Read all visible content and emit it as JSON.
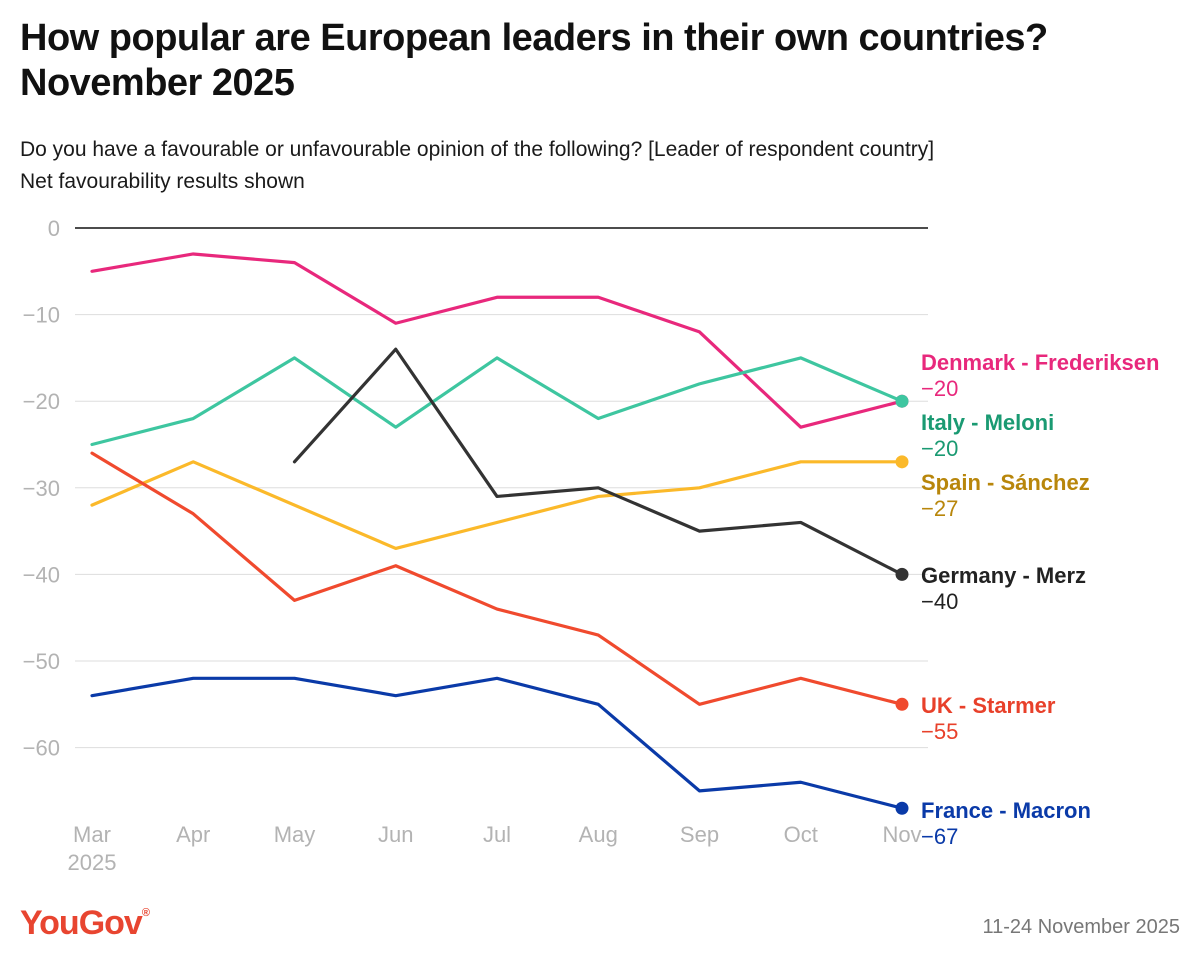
{
  "title": "How popular are European leaders in their own countries? November 2025",
  "subtitle_line1": "Do you have a favourable or unfavourable opinion of the following? [Leader of respondent country]",
  "subtitle_line2": "Net favourability results shown",
  "footer": {
    "logo": "YouGov",
    "date": "11-24 November 2025"
  },
  "chart_data": {
    "type": "line",
    "title": "How popular are European leaders in their own countries? November 2025",
    "xlabel": "",
    "ylabel": "",
    "categories": [
      "Mar",
      "Apr",
      "May",
      "Jun",
      "Jul",
      "Aug",
      "Sep",
      "Oct",
      "Nov"
    ],
    "category_sublabels": [
      "2025",
      "",
      "",
      "",
      "",
      "",
      "",
      "",
      ""
    ],
    "ylim": [
      -70,
      0
    ],
    "yticks": [
      0,
      -10,
      -20,
      -30,
      -40,
      -50,
      -60
    ],
    "ytick_labels": [
      "0",
      "−10",
      "−20",
      "−30",
      "−40",
      "−50",
      "−60"
    ],
    "grid": true,
    "legend": "right (direct labels)",
    "series": [
      {
        "name": "Denmark - Frederiksen",
        "label_value": "−20",
        "color": "#e8287c",
        "label_color": "#e8287c",
        "values": [
          -5,
          -3,
          -4,
          -11,
          -8,
          -8,
          -12,
          -23,
          -20
        ]
      },
      {
        "name": "Italy - Meloni",
        "label_value": "−20",
        "color": "#3ec6a0",
        "label_color": "#1a9a72",
        "values": [
          -25,
          -22,
          -15,
          -23,
          -15,
          -22,
          -18,
          -15,
          -20
        ]
      },
      {
        "name": "Spain - Sánchez",
        "label_value": "−27",
        "color": "#fbb92a",
        "label_color": "#b8860b",
        "values": [
          -32,
          -27,
          null,
          -37,
          null,
          -31,
          -30,
          -27,
          -27
        ]
      },
      {
        "name": "Germany - Merz",
        "label_value": "−40",
        "color": "#333333",
        "label_color": "#222222",
        "values": [
          null,
          null,
          -27,
          -14,
          -31,
          -30,
          -35,
          -34,
          -40
        ]
      },
      {
        "name": "UK - Starmer",
        "label_value": "−55",
        "color": "#f04a2e",
        "label_color": "#e8402a",
        "values": [
          -26,
          -33,
          -43,
          -39,
          -44,
          -47,
          -55,
          -52,
          -55
        ]
      },
      {
        "name": "France - Macron",
        "label_value": "−67",
        "color": "#0a3aa8",
        "label_color": "#0a3aa8",
        "values": [
          -54,
          -52,
          -52,
          -54,
          -52,
          -55,
          -65,
          -64,
          -67
        ]
      }
    ]
  }
}
